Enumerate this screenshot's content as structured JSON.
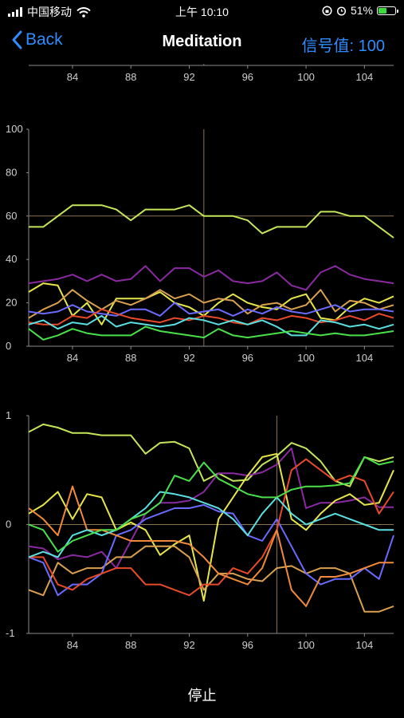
{
  "status_bar": {
    "carrier": "中国移动",
    "time": "上午 10:10",
    "battery_percent": "51%",
    "battery_level": 0.51,
    "icons": [
      "signal-icon",
      "wifi-icon",
      "orientation-lock-icon",
      "alarm-icon",
      "battery-icon"
    ]
  },
  "nav": {
    "back_label": "Back",
    "title": "Meditation",
    "signal_label": "信号值: 100"
  },
  "footer": {
    "stop_label": "停止"
  },
  "colors": {
    "background": "#000000",
    "accent": "#2f8cff",
    "axis": "#8a8a8a",
    "crosshair": "#8a7350"
  },
  "chart_data": [
    {
      "type": "line",
      "xlim": [
        81,
        106
      ],
      "x_ticks": [
        "84",
        "88",
        "92",
        "96",
        "100",
        "104"
      ],
      "crosshair_x": 93,
      "series": []
    },
    {
      "type": "line",
      "xlim": [
        81,
        106
      ],
      "ylim": [
        0,
        100
      ],
      "x_ticks": [
        "84",
        "88",
        "92",
        "96",
        "100",
        "104"
      ],
      "y_ticks": [
        "0",
        "20",
        "40",
        "60",
        "80",
        "100"
      ],
      "grid": false,
      "crosshair_x": 93,
      "crosshair_y": 60,
      "series": [
        {
          "color": "#c5e55a",
          "x": [
            81,
            82,
            83,
            84,
            85,
            86,
            87,
            88,
            89,
            90,
            91,
            92,
            93,
            94,
            95,
            96,
            97,
            98,
            99,
            100,
            101,
            102,
            103,
            104,
            105,
            106
          ],
          "y": [
            55,
            55,
            60,
            65,
            65,
            65,
            63,
            58,
            63,
            63,
            63,
            65,
            60,
            60,
            60,
            58,
            52,
            55,
            55,
            55,
            62,
            62,
            60,
            60,
            55,
            50
          ]
        },
        {
          "color": "#8a2aa0",
          "x": [
            81,
            82,
            83,
            84,
            85,
            86,
            87,
            88,
            89,
            90,
            91,
            92,
            93,
            94,
            95,
            96,
            97,
            98,
            99,
            100,
            101,
            102,
            103,
            104,
            105,
            106
          ],
          "y": [
            29,
            30,
            31,
            33,
            30,
            33,
            30,
            31,
            37,
            30,
            36,
            36,
            32,
            35,
            30,
            29,
            30,
            34,
            28,
            26,
            34,
            37,
            33,
            31,
            30,
            29
          ]
        },
        {
          "color": "#e6e64a",
          "x": [
            81,
            82,
            83,
            84,
            85,
            86,
            87,
            88,
            89,
            90,
            91,
            92,
            93,
            94,
            95,
            96,
            97,
            98,
            99,
            100,
            101,
            102,
            103,
            104,
            105,
            106
          ],
          "y": [
            25,
            29,
            28,
            14,
            20,
            10,
            22,
            22,
            22,
            25,
            20,
            18,
            14,
            20,
            24,
            20,
            18,
            17,
            22,
            24,
            13,
            12,
            18,
            22,
            20,
            23
          ]
        },
        {
          "color": "#d9a050",
          "x": [
            81,
            82,
            83,
            84,
            85,
            86,
            87,
            88,
            89,
            90,
            91,
            92,
            93,
            94,
            95,
            96,
            97,
            98,
            99,
            100,
            101,
            102,
            103,
            104,
            105,
            106
          ],
          "y": [
            13,
            17,
            20,
            26,
            21,
            17,
            21,
            19,
            22,
            26,
            22,
            24,
            20,
            22,
            21,
            15,
            19,
            20,
            17,
            19,
            26,
            16,
            21,
            20,
            17,
            19
          ]
        },
        {
          "color": "#6a6aff",
          "x": [
            81,
            82,
            83,
            84,
            85,
            86,
            87,
            88,
            89,
            90,
            91,
            92,
            93,
            94,
            95,
            96,
            97,
            98,
            99,
            100,
            101,
            102,
            103,
            104,
            105,
            106
          ],
          "y": [
            16,
            15,
            16,
            19,
            16,
            15,
            14,
            17,
            17,
            14,
            20,
            15,
            16,
            17,
            14,
            17,
            15,
            18,
            16,
            15,
            17,
            19,
            16,
            17,
            17,
            16
          ]
        },
        {
          "color": "#e84a2a",
          "x": [
            81,
            82,
            83,
            84,
            85,
            86,
            87,
            88,
            89,
            90,
            91,
            92,
            93,
            94,
            95,
            96,
            97,
            98,
            99,
            100,
            101,
            102,
            103,
            104,
            105,
            106
          ],
          "y": [
            11,
            10,
            10,
            14,
            13,
            17,
            15,
            13,
            12,
            11,
            13,
            12,
            14,
            13,
            11,
            10,
            13,
            12,
            14,
            13,
            11,
            12,
            14,
            12,
            15,
            13
          ]
        },
        {
          "color": "#5ae0e0",
          "x": [
            81,
            82,
            83,
            84,
            85,
            86,
            87,
            88,
            89,
            90,
            91,
            92,
            93,
            94,
            95,
            96,
            97,
            98,
            99,
            100,
            101,
            102,
            103,
            104,
            105,
            106
          ],
          "y": [
            10,
            12,
            8,
            11,
            10,
            14,
            9,
            11,
            10,
            9,
            10,
            13,
            12,
            10,
            12,
            10,
            12,
            9,
            5,
            5,
            12,
            11,
            9,
            10,
            8,
            10
          ]
        },
        {
          "color": "#4ae04a",
          "x": [
            81,
            82,
            83,
            84,
            85,
            86,
            87,
            88,
            89,
            90,
            91,
            92,
            93,
            94,
            95,
            96,
            97,
            98,
            99,
            100,
            101,
            102,
            103,
            104,
            105,
            106
          ],
          "y": [
            8,
            3,
            5,
            8,
            6,
            5,
            5,
            5,
            9,
            7,
            6,
            5,
            4,
            8,
            5,
            4,
            5,
            6,
            7,
            6,
            5,
            6,
            5,
            5,
            6,
            7
          ]
        }
      ]
    },
    {
      "type": "line",
      "xlim": [
        81,
        106
      ],
      "ylim": [
        -1,
        1
      ],
      "x_ticks": [
        "84",
        "88",
        "92",
        "96",
        "100",
        "104"
      ],
      "y_ticks": [
        "-1",
        "0",
        "1"
      ],
      "grid": false,
      "crosshair_x": 98,
      "crosshair_y": 0,
      "series": [
        {
          "color": "#c5e55a",
          "x": [
            81,
            82,
            83,
            84,
            85,
            86,
            87,
            88,
            89,
            90,
            91,
            92,
            93,
            94,
            95,
            96,
            97,
            98,
            99,
            100,
            101,
            102,
            103,
            104,
            105,
            106
          ],
          "y": [
            0.85,
            0.92,
            0.89,
            0.84,
            0.84,
            0.82,
            0.82,
            0.82,
            0.65,
            0.75,
            0.76,
            0.7,
            0.4,
            0.47,
            0.4,
            0.41,
            0.55,
            0.63,
            0.75,
            0.7,
            0.58,
            0.4,
            0.35,
            0.62,
            0.58,
            0.62
          ]
        },
        {
          "color": "#8a2aa0",
          "x": [
            81,
            82,
            83,
            84,
            85,
            86,
            87,
            88,
            89,
            90,
            91,
            92,
            93,
            94,
            95,
            96,
            97,
            98,
            99,
            100,
            101,
            102,
            103,
            104,
            105,
            106
          ],
          "y": [
            -0.2,
            -0.22,
            -0.32,
            -0.28,
            -0.3,
            -0.25,
            -0.4,
            -0.15,
            0.1,
            0.2,
            0.2,
            0.22,
            0.3,
            0.47,
            0.47,
            0.45,
            0.48,
            0.55,
            0.7,
            0.15,
            0.2,
            0.2,
            0.22,
            0.25,
            0.16,
            0.16
          ]
        },
        {
          "color": "#e6e64a",
          "x": [
            81,
            82,
            83,
            84,
            85,
            86,
            87,
            88,
            89,
            90,
            91,
            92,
            93,
            94,
            95,
            96,
            97,
            98,
            99,
            100,
            101,
            102,
            103,
            104,
            105,
            106
          ],
          "y": [
            0.1,
            0.18,
            0.3,
            0.05,
            0.28,
            0.25,
            -0.05,
            0.02,
            -0.05,
            -0.28,
            -0.18,
            -0.1,
            -0.7,
            0.05,
            0.25,
            0.45,
            0.62,
            0.65,
            0.05,
            -0.05,
            0.1,
            0.22,
            0.28,
            0.18,
            0.2,
            0.5
          ]
        },
        {
          "color": "#d9a050",
          "x": [
            81,
            82,
            83,
            84,
            85,
            86,
            87,
            88,
            89,
            90,
            91,
            92,
            93,
            94,
            95,
            96,
            97,
            98,
            99,
            100,
            101,
            102,
            103,
            104,
            105,
            106
          ],
          "y": [
            -0.6,
            -0.65,
            -0.35,
            -0.45,
            -0.4,
            -0.4,
            -0.3,
            -0.3,
            -0.2,
            -0.2,
            -0.2,
            -0.3,
            -0.6,
            -0.45,
            -0.45,
            -0.5,
            -0.52,
            -0.4,
            -0.38,
            -0.45,
            -0.4,
            -0.4,
            -0.45,
            -0.8,
            -0.8,
            -0.75
          ]
        },
        {
          "color": "#6a6aff",
          "x": [
            81,
            82,
            83,
            84,
            85,
            86,
            87,
            88,
            89,
            90,
            91,
            92,
            93,
            94,
            95,
            96,
            97,
            98,
            99,
            100,
            101,
            102,
            103,
            104,
            105,
            106
          ],
          "y": [
            -0.3,
            -0.35,
            -0.65,
            -0.55,
            -0.55,
            -0.45,
            -0.1,
            -0.05,
            0.05,
            0.1,
            0.15,
            0.15,
            0.18,
            0.12,
            0.1,
            -0.1,
            -0.15,
            0.05,
            -0.2,
            -0.45,
            -0.55,
            -0.5,
            -0.5,
            -0.4,
            -0.5,
            -0.1
          ]
        },
        {
          "color": "#e84a2a",
          "x": [
            81,
            82,
            83,
            84,
            85,
            86,
            87,
            88,
            89,
            90,
            91,
            92,
            93,
            94,
            95,
            96,
            97,
            98,
            99,
            100,
            101,
            102,
            103,
            104,
            105,
            106
          ],
          "y": [
            -0.3,
            -0.3,
            -0.55,
            -0.6,
            -0.5,
            -0.45,
            -0.4,
            -0.4,
            -0.55,
            -0.55,
            -0.6,
            -0.65,
            -0.55,
            -0.55,
            -0.4,
            -0.45,
            -0.3,
            -0.05,
            0.5,
            0.6,
            0.5,
            0.4,
            0.45,
            0.4,
            0.1,
            0.3
          ]
        },
        {
          "color": "#f08a3a",
          "x": [
            81,
            82,
            83,
            84,
            85,
            86,
            87,
            88,
            89,
            90,
            91,
            92,
            93,
            94,
            95,
            96,
            97,
            98,
            99,
            100,
            101,
            102,
            103,
            104,
            105,
            106
          ],
          "y": [
            0.15,
            0.05,
            -0.1,
            0.35,
            -0.05,
            -0.05,
            -0.1,
            -0.15,
            -0.15,
            -0.15,
            -0.15,
            -0.18,
            -0.3,
            -0.45,
            -0.5,
            -0.55,
            -0.4,
            -0.05,
            -0.6,
            -0.75,
            -0.48,
            -0.48,
            -0.45,
            -0.4,
            -0.35,
            -0.35
          ]
        },
        {
          "color": "#5ae0e0",
          "x": [
            81,
            82,
            83,
            84,
            85,
            86,
            87,
            88,
            89,
            90,
            91,
            92,
            93,
            94,
            95,
            96,
            97,
            98,
            99,
            100,
            101,
            102,
            103,
            104,
            105,
            106
          ],
          "y": [
            -0.3,
            -0.25,
            -0.3,
            -0.1,
            -0.05,
            -0.1,
            -0.05,
            0.05,
            0.15,
            0.3,
            0.28,
            0.25,
            0.2,
            0.15,
            0.05,
            -0.1,
            0.1,
            0.25,
            0.1,
            0.0,
            0.05,
            0.1,
            0.05,
            0.0,
            -0.05,
            -0.05
          ]
        },
        {
          "color": "#4ae04a",
          "x": [
            81,
            82,
            83,
            84,
            85,
            86,
            87,
            88,
            89,
            90,
            91,
            92,
            93,
            94,
            95,
            96,
            97,
            98,
            99,
            100,
            101,
            102,
            103,
            104,
            105,
            106
          ],
          "y": [
            0.0,
            -0.05,
            -0.25,
            -0.15,
            -0.1,
            -0.05,
            -0.05,
            0.05,
            0.1,
            0.2,
            0.45,
            0.4,
            0.57,
            0.42,
            0.35,
            0.28,
            0.25,
            0.25,
            0.32,
            0.35,
            0.35,
            0.36,
            0.38,
            0.62,
            0.55,
            0.58
          ]
        }
      ]
    }
  ]
}
